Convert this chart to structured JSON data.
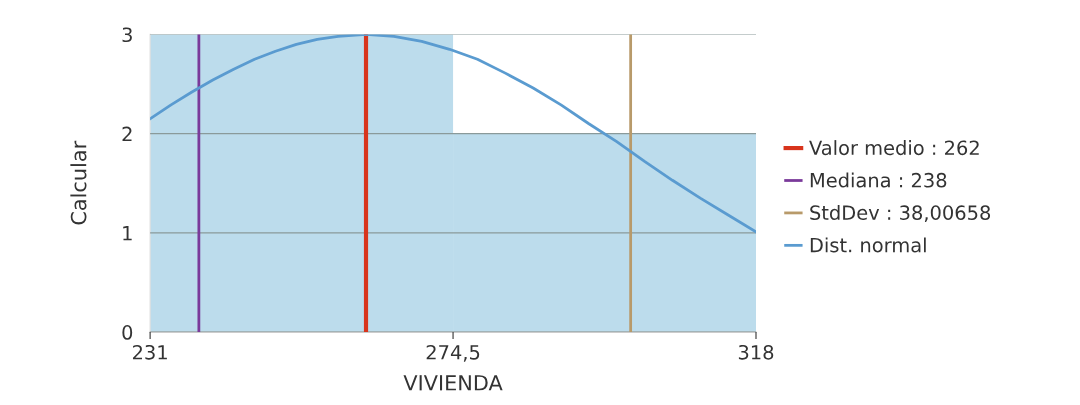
{
  "chart_data": {
    "type": "histogram",
    "xlabel": "VIVIENDA",
    "ylabel": "Calcular",
    "bins": [
      231,
      274.5,
      318
    ],
    "values": [
      3,
      2
    ],
    "color": "#bcdcec",
    "series": [
      {
        "type": "line",
        "name": "Valor medio : 262",
        "color": "#d8341c",
        "x": [
          262,
          262
        ],
        "values": [
          0,
          3
        ]
      },
      {
        "type": "line",
        "name": "Mediana : 238",
        "color": "#7a3a9a",
        "x": [
          238,
          238
        ],
        "values": [
          0,
          3
        ]
      },
      {
        "type": "line",
        "name": "StdDev : 38,00658",
        "color": "#b89a6a",
        "x": [
          300,
          300
        ],
        "values": [
          0,
          3
        ]
      },
      {
        "type": "line",
        "name": "Dist. normal",
        "color": "#5a9bd0",
        "x": [
          231,
          234,
          237,
          240,
          243,
          246,
          249,
          252,
          255,
          258,
          262,
          266,
          270,
          274,
          278,
          282,
          286,
          290,
          294,
          298,
          302,
          306,
          310,
          314,
          318
        ],
        "values": [
          2.15,
          2.29,
          2.42,
          2.54,
          2.65,
          2.75,
          2.83,
          2.9,
          2.95,
          2.98,
          3.0,
          2.98,
          2.93,
          2.85,
          2.75,
          2.61,
          2.46,
          2.29,
          2.1,
          1.92,
          1.72,
          1.53,
          1.35,
          1.18,
          1.01
        ]
      }
    ],
    "xlim": [
      231,
      318
    ],
    "xticks": [
      231,
      {
        "value": 274.5,
        "label": "274,5"
      },
      318
    ],
    "ylim": [
      0,
      3
    ],
    "yticks": [
      0,
      1,
      2,
      3
    ],
    "grid": "y",
    "legend": "right",
    "marker": "none",
    "line_style": "solid"
  }
}
